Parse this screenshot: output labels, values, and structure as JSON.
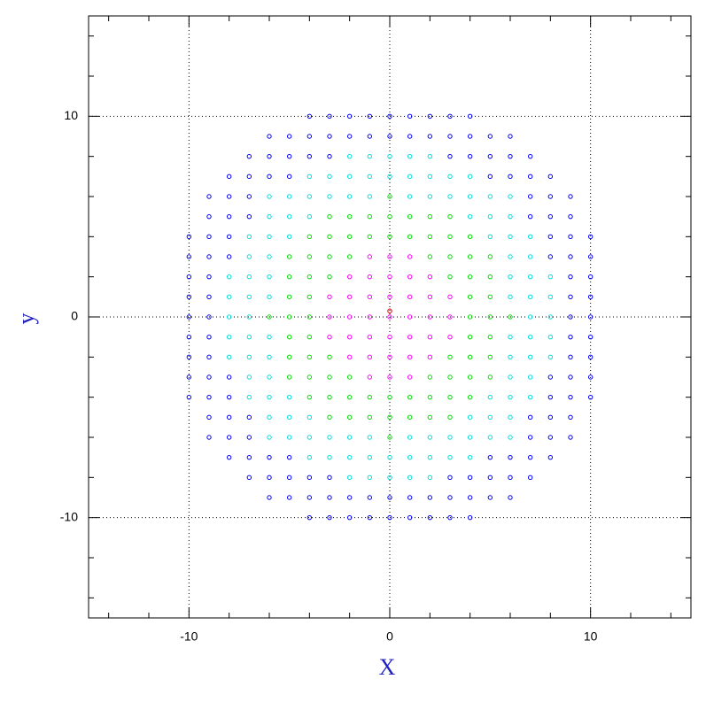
{
  "chart_data": {
    "type": "scatter",
    "x_label": "X",
    "y_label": "y",
    "xlim": [
      -15,
      15
    ],
    "ylim": [
      -15,
      15
    ],
    "xticks": [
      -10,
      0,
      10
    ],
    "yticks": [
      -10,
      0,
      10
    ],
    "xminorticks": [
      -14,
      -12,
      -8,
      -6,
      -4,
      -2,
      2,
      4,
      6,
      8,
      12,
      14
    ],
    "yminorticks": [
      -14,
      -12,
      -8,
      -6,
      -4,
      -2,
      2,
      4,
      6,
      8,
      12,
      14
    ],
    "grid": true,
    "series": [
      {
        "color": "#ff00ff",
        "x": [
          -1,
          0,
          1,
          -2,
          -1,
          0,
          1,
          2,
          -3,
          -2,
          -1,
          0,
          1,
          2,
          3,
          -3,
          -2,
          -1,
          0,
          1,
          2,
          3,
          -3,
          -2,
          -1,
          0,
          1,
          2,
          3,
          -2,
          -1,
          0,
          1,
          2,
          -1,
          0,
          1
        ],
        "y": [
          3,
          3,
          3,
          2,
          2,
          2,
          2,
          2,
          1,
          1,
          1,
          1,
          1,
          1,
          1,
          0,
          0,
          0,
          0,
          0,
          0,
          0,
          -1,
          -1,
          -1,
          -1,
          -1,
          -1,
          -1,
          -2,
          -2,
          -2,
          -2,
          -2,
          -3,
          -3,
          -3
        ]
      },
      {
        "color": "#00dd00",
        "x": [
          0,
          -3,
          -2,
          -1,
          0,
          1,
          2,
          3,
          -4,
          -3,
          -2,
          -1,
          0,
          1,
          2,
          3,
          4,
          -5,
          -4,
          -3,
          -2,
          2,
          3,
          4,
          5,
          -5,
          -4,
          -3,
          3,
          4,
          5,
          -5,
          -4,
          4,
          5,
          -6,
          -5,
          -4,
          4,
          5,
          6,
          -5,
          -4,
          4,
          5,
          -5,
          -4,
          -3,
          3,
          4,
          5,
          -5,
          -4,
          -3,
          -2,
          2,
          3,
          4,
          5,
          -4,
          -3,
          -2,
          -1,
          0,
          1,
          2,
          3,
          4,
          -3,
          -2,
          -1,
          0,
          1,
          2,
          3,
          0
        ],
        "y": [
          6,
          5,
          5,
          5,
          5,
          5,
          5,
          5,
          4,
          4,
          4,
          4,
          4,
          4,
          4,
          4,
          4,
          3,
          3,
          3,
          3,
          3,
          3,
          3,
          3,
          2,
          2,
          2,
          2,
          2,
          2,
          1,
          1,
          1,
          1,
          0,
          0,
          0,
          0,
          0,
          0,
          -1,
          -1,
          -1,
          -1,
          -2,
          -2,
          -2,
          -2,
          -2,
          -2,
          -3,
          -3,
          -3,
          -3,
          -3,
          -3,
          -3,
          -3,
          -4,
          -4,
          -4,
          -4,
          -4,
          -4,
          -4,
          -4,
          -4,
          -5,
          -5,
          -5,
          -5,
          -5,
          -5,
          -5,
          -6
        ]
      },
      {
        "color": "#00dddd",
        "x": [
          -2,
          -1,
          0,
          1,
          2,
          -4,
          -3,
          -2,
          -1,
          0,
          1,
          2,
          3,
          4,
          -6,
          -5,
          -4,
          -3,
          -2,
          -1,
          1,
          2,
          3,
          4,
          5,
          6,
          -6,
          -5,
          -4,
          4,
          5,
          6,
          -7,
          -6,
          -5,
          5,
          6,
          7,
          -7,
          -6,
          6,
          7,
          -8,
          -7,
          -6,
          6,
          7,
          8,
          -8,
          -7,
          -6,
          6,
          7,
          8,
          -8,
          -7,
          7,
          8,
          -8,
          -7,
          -6,
          6,
          7,
          8,
          -8,
          -7,
          -6,
          6,
          7,
          8,
          -7,
          -6,
          6,
          7,
          -7,
          -6,
          -5,
          5,
          6,
          7,
          -6,
          -5,
          -4,
          4,
          5,
          6,
          -6,
          -5,
          -4,
          -3,
          -2,
          -1,
          1,
          2,
          3,
          4,
          5,
          6,
          -4,
          -3,
          -2,
          -1,
          0,
          1,
          2,
          3,
          4,
          -2,
          -1,
          0,
          1,
          2
        ],
        "y": [
          8,
          8,
          8,
          8,
          8,
          7,
          7,
          7,
          7,
          7,
          7,
          7,
          7,
          7,
          6,
          6,
          6,
          6,
          6,
          6,
          6,
          6,
          6,
          6,
          6,
          6,
          5,
          5,
          5,
          5,
          5,
          5,
          4,
          4,
          4,
          4,
          4,
          4,
          3,
          3,
          3,
          3,
          2,
          2,
          2,
          2,
          2,
          2,
          1,
          1,
          1,
          1,
          1,
          1,
          0,
          0,
          0,
          0,
          -1,
          -1,
          -1,
          -1,
          -1,
          -1,
          -2,
          -2,
          -2,
          -2,
          -2,
          -2,
          -3,
          -3,
          -3,
          -3,
          -4,
          -4,
          -4,
          -4,
          -4,
          -4,
          -5,
          -5,
          -5,
          -5,
          -5,
          -5,
          -6,
          -6,
          -6,
          -6,
          -6,
          -6,
          -6,
          -6,
          -6,
          -6,
          -6,
          -6,
          -7,
          -7,
          -7,
          -7,
          -7,
          -7,
          -7,
          -7,
          -7,
          -8,
          -8,
          -8,
          -8,
          -8
        ]
      },
      {
        "color": "#0000ff",
        "x": [
          -4,
          -3,
          -2,
          -1,
          0,
          1,
          2,
          3,
          4,
          -6,
          -5,
          -4,
          -3,
          -2,
          -1,
          0,
          1,
          2,
          3,
          4,
          5,
          6,
          -7,
          -6,
          -5,
          -4,
          -3,
          3,
          4,
          5,
          6,
          7,
          -8,
          -7,
          -6,
          -5,
          5,
          6,
          7,
          8,
          -9,
          -8,
          -7,
          7,
          8,
          9,
          -9,
          -8,
          -7,
          7,
          8,
          9,
          -10,
          -9,
          -8,
          8,
          9,
          10,
          -10,
          -9,
          -8,
          8,
          9,
          10,
          -10,
          -9,
          9,
          10,
          -10,
          -9,
          9,
          10,
          -10,
          -9,
          9,
          10,
          -10,
          -9,
          9,
          10,
          -10,
          -9,
          9,
          10,
          -10,
          -9,
          -8,
          8,
          9,
          10,
          -10,
          -9,
          -8,
          8,
          9,
          10,
          -9,
          -8,
          -7,
          7,
          8,
          9,
          -9,
          -8,
          -7,
          7,
          8,
          9,
          -8,
          -7,
          -6,
          -5,
          5,
          6,
          7,
          8,
          -7,
          -6,
          -5,
          -4,
          -3,
          3,
          4,
          5,
          6,
          7,
          -6,
          -5,
          -4,
          -3,
          -2,
          -1,
          0,
          1,
          2,
          3,
          4,
          5,
          6,
          -4,
          -3,
          -2,
          -1,
          0,
          1,
          2,
          3,
          4
        ],
        "y": [
          10,
          10,
          10,
          10,
          10,
          10,
          10,
          10,
          10,
          9,
          9,
          9,
          9,
          9,
          9,
          9,
          9,
          9,
          9,
          9,
          9,
          9,
          8,
          8,
          8,
          8,
          8,
          8,
          8,
          8,
          8,
          8,
          7,
          7,
          7,
          7,
          7,
          7,
          7,
          7,
          6,
          6,
          6,
          6,
          6,
          6,
          5,
          5,
          5,
          5,
          5,
          5,
          4,
          4,
          4,
          4,
          4,
          4,
          3,
          3,
          3,
          3,
          3,
          3,
          2,
          2,
          2,
          2,
          1,
          1,
          1,
          1,
          0,
          0,
          0,
          0,
          -1,
          -1,
          -1,
          -1,
          -2,
          -2,
          -2,
          -2,
          -3,
          -3,
          -3,
          -3,
          -3,
          -3,
          -4,
          -4,
          -4,
          -4,
          -4,
          -4,
          -5,
          -5,
          -5,
          -5,
          -5,
          -5,
          -6,
          -6,
          -6,
          -6,
          -6,
          -6,
          -7,
          -7,
          -7,
          -7,
          -7,
          -7,
          -7,
          -7,
          -8,
          -8,
          -8,
          -8,
          -8,
          -8,
          -8,
          -8,
          -8,
          -8,
          -9,
          -9,
          -9,
          -9,
          -9,
          -9,
          -9,
          -9,
          -9,
          -9,
          -9,
          -9,
          -9,
          -10,
          -10,
          -10,
          -10,
          -10,
          -10,
          -10,
          -10,
          -10
        ]
      },
      {
        "color": "#e00000",
        "x": [
          0
        ],
        "y": [
          0.3
        ]
      }
    ]
  }
}
